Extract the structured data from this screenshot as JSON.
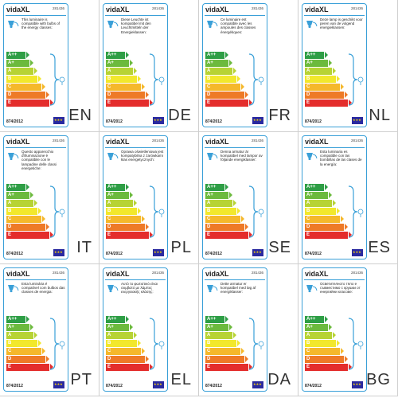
{
  "brand": "vidaXL",
  "product_code": "281436",
  "regulation": "874/2012",
  "energy_classes": [
    "A++",
    "A+",
    "A",
    "B",
    "C",
    "D",
    "E"
  ],
  "class_colors": [
    "#2e9e45",
    "#6cba3d",
    "#b7d334",
    "#f2e82c",
    "#f5b82b",
    "#ee7a27",
    "#e42d2c"
  ],
  "colors": {
    "label_border": "#3aa0d8",
    "eu_flag": "#2a2aa0"
  },
  "icons": [
    "lamp-icon",
    "eu-flag-icon",
    "bulb-brace-icon"
  ],
  "labels": [
    {
      "lang": "EN",
      "text": "This luminaire is compatible with bulbs of the energy classes:"
    },
    {
      "lang": "DE",
      "text": "Diese Leuchte ist kompatibel mit den Leuchtmitteln der Energieklassen:"
    },
    {
      "lang": "FR",
      "text": "Ce luminaire est compatible avec les ampoules des classes énergétiques:"
    },
    {
      "lang": "NL",
      "text": "Deze lamp is geschikt voor peren van de volgend energieklassen:"
    },
    {
      "lang": "IT",
      "text": "Questo apparecchio d'illuminazione è compatibile con le lampadine delle classi energetiche:"
    },
    {
      "lang": "PL",
      "text": "Oprawa oświetleniowa jest kompatybilna z żarówkami klas energetycznych:"
    },
    {
      "lang": "SE",
      "text": "Denna armatur är kompatibel med lampor av följande energiklasser:"
    },
    {
      "lang": "ES",
      "text": "Esta luminaria es compatible con las bombillas de las clases de la energía:"
    },
    {
      "lang": "PT",
      "text": "Esta luminária é compatível com bulbos das classes de energia:"
    },
    {
      "lang": "EL",
      "text": "Αυτό το φωτιστικό είναι συμβατό με λάμπες ενεργειακής κλάσης:"
    },
    {
      "lang": "DA",
      "text": "Dette armatur er kompatibel med løg af energiklasser:"
    },
    {
      "lang": "BG",
      "text": "Осветителното тяло е съвместимо с крушки от енергийни класове:"
    }
  ]
}
